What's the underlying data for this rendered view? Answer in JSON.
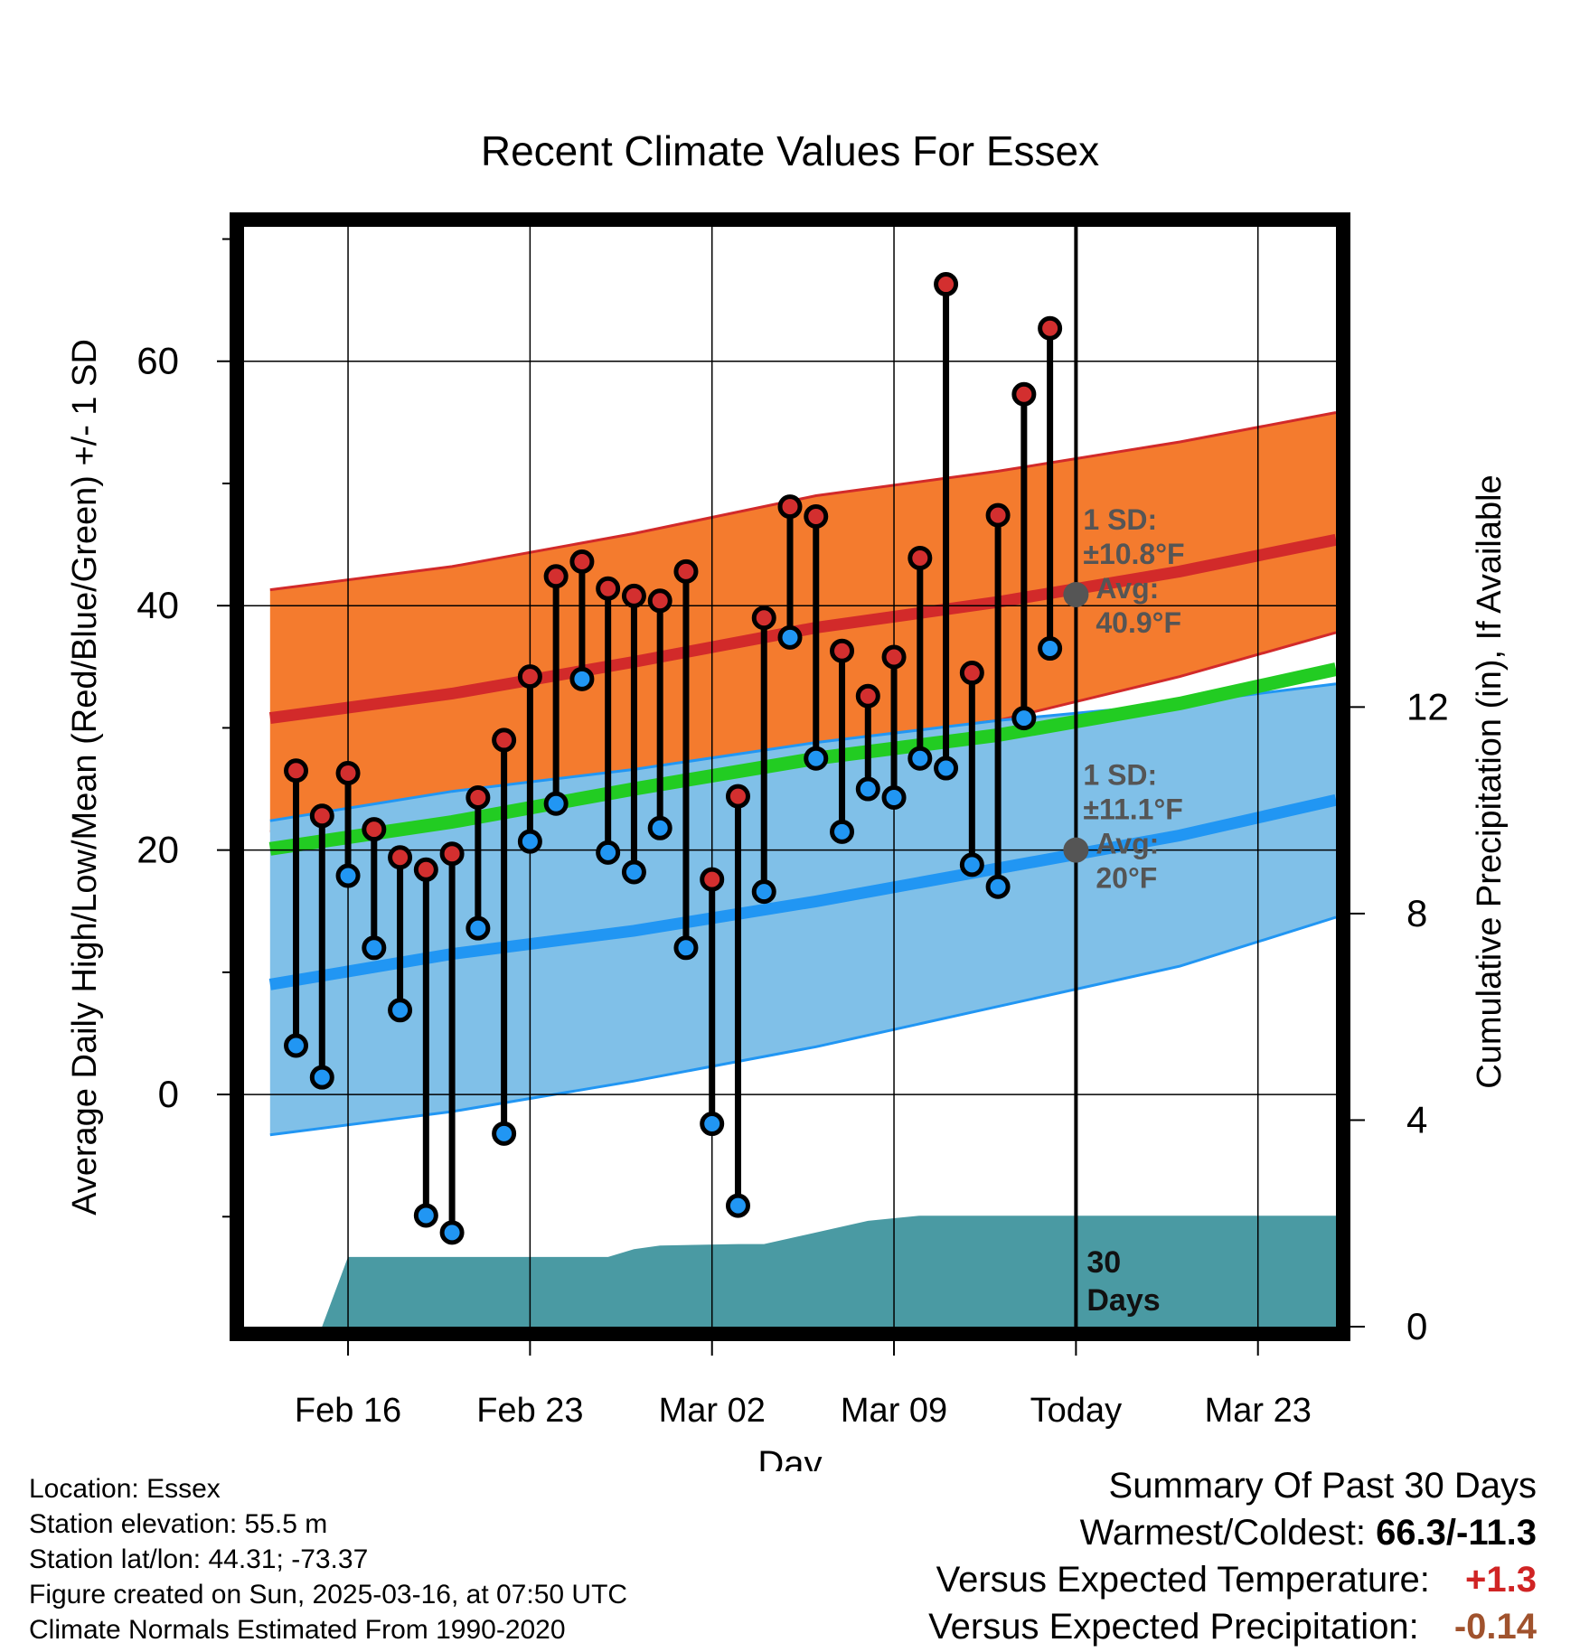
{
  "title": "Recent Climate Values For Essex",
  "chart_data": {
    "type": "line",
    "title": "Recent Climate Values For Essex",
    "xlabel": "Day",
    "ylabel": "Average Daily High/Low/Mean (Red/Blue/Green) +/- 1 SD",
    "y2label": "Cumulative Precipitation (in), If Available",
    "ylim": [
      -19,
      71
    ],
    "y2lim": [
      0,
      21.3
    ],
    "yticks": [
      0,
      20,
      40,
      60
    ],
    "y2ticks": [
      0,
      4,
      8,
      12
    ],
    "xlim": [
      "2025-02-12",
      "2025-03-26"
    ],
    "xticks": [
      {
        "date": "2025-02-16",
        "label": "Feb 16"
      },
      {
        "date": "2025-02-23",
        "label": "Feb 23"
      },
      {
        "date": "2025-03-02",
        "label": "Mar 02"
      },
      {
        "date": "2025-03-09",
        "label": "Mar 09"
      },
      {
        "date": "2025-03-16",
        "label": "Today"
      },
      {
        "date": "2025-03-23",
        "label": "Mar 23"
      }
    ],
    "grid": true,
    "normal_bands": [
      {
        "name": "High",
        "color": "#f47b2e",
        "edge": "#d22a2a",
        "x": [
          "2025-02-13",
          "2025-02-20",
          "2025-02-27",
          "2025-03-06",
          "2025-03-13",
          "2025-03-20",
          "2025-03-26"
        ],
        "mean": [
          30.8,
          32.8,
          35.4,
          38.2,
          40.3,
          42.8,
          45.4
        ],
        "upper": [
          41.3,
          43.2,
          45.9,
          49.0,
          51.0,
          53.4,
          55.8
        ],
        "lower": [
          21.5,
          23.2,
          25.9,
          28.7,
          30.6,
          34.2,
          37.8
        ]
      },
      {
        "name": "Low",
        "color": "#80c0e8",
        "edge": "#2196f3",
        "x": [
          "2025-02-13",
          "2025-02-20",
          "2025-02-27",
          "2025-03-06",
          "2025-03-13",
          "2025-03-20",
          "2025-03-26"
        ],
        "mean": [
          9.0,
          11.5,
          13.4,
          15.8,
          18.5,
          21.2,
          24.1
        ],
        "upper": [
          22.4,
          24.8,
          26.6,
          28.8,
          30.6,
          32.0,
          33.6
        ],
        "lower": [
          -3.3,
          -1.4,
          1.1,
          3.9,
          7.2,
          10.5,
          14.5
        ]
      },
      {
        "name": "Mean",
        "color": "#22cc22",
        "x": [
          "2025-02-13",
          "2025-02-20",
          "2025-02-27",
          "2025-03-06",
          "2025-03-13",
          "2025-03-20",
          "2025-03-26"
        ],
        "mean": [
          20.1,
          22.3,
          25.0,
          27.5,
          29.4,
          32.0,
          34.8
        ]
      }
    ],
    "daily": [
      {
        "date": "2025-02-14",
        "high": 26.5,
        "low": 4.0
      },
      {
        "date": "2025-02-15",
        "high": 22.8,
        "low": 1.4
      },
      {
        "date": "2025-02-16",
        "high": 26.3,
        "low": 17.9
      },
      {
        "date": "2025-02-17",
        "high": 21.7,
        "low": 12.0
      },
      {
        "date": "2025-02-18",
        "high": 19.4,
        "low": 6.9
      },
      {
        "date": "2025-02-19",
        "high": 18.4,
        "low": -9.9
      },
      {
        "date": "2025-02-20",
        "high": 19.7,
        "low": -11.3
      },
      {
        "date": "2025-02-21",
        "high": 24.3,
        "low": 13.6
      },
      {
        "date": "2025-02-22",
        "high": 29.0,
        "low": -3.2
      },
      {
        "date": "2025-02-23",
        "high": 34.2,
        "low": 20.7
      },
      {
        "date": "2025-02-24",
        "high": 42.4,
        "low": 23.8
      },
      {
        "date": "2025-02-25",
        "high": 43.6,
        "low": 34.0
      },
      {
        "date": "2025-02-26",
        "high": 41.4,
        "low": 19.8
      },
      {
        "date": "2025-02-27",
        "high": 40.8,
        "low": 18.2
      },
      {
        "date": "2025-02-28",
        "high": 40.4,
        "low": 21.8
      },
      {
        "date": "2025-03-01",
        "high": 42.8,
        "low": 12.0
      },
      {
        "date": "2025-03-02",
        "high": 17.6,
        "low": -2.4
      },
      {
        "date": "2025-03-03",
        "high": 24.4,
        "low": -9.1
      },
      {
        "date": "2025-03-04",
        "high": 39.0,
        "low": 16.6
      },
      {
        "date": "2025-03-05",
        "high": 48.1,
        "low": 37.4
      },
      {
        "date": "2025-03-06",
        "high": 47.3,
        "low": 27.5
      },
      {
        "date": "2025-03-07",
        "high": 36.3,
        "low": 21.5
      },
      {
        "date": "2025-03-08",
        "high": 32.6,
        "low": 25.0
      },
      {
        "date": "2025-03-09",
        "high": 35.8,
        "low": 24.3
      },
      {
        "date": "2025-03-10",
        "high": 43.9,
        "low": 27.5
      },
      {
        "date": "2025-03-11",
        "high": 66.3,
        "low": 26.7
      },
      {
        "date": "2025-03-12",
        "high": 34.5,
        "low": 18.8
      },
      {
        "date": "2025-03-13",
        "high": 47.4,
        "low": 17.0
      },
      {
        "date": "2025-03-14",
        "high": 57.3,
        "low": 30.8
      },
      {
        "date": "2025-03-15",
        "high": 62.7,
        "low": 36.5
      }
    ],
    "precipitation": {
      "x": [
        "2025-02-14",
        "2025-02-15",
        "2025-02-16",
        "2025-02-22",
        "2025-02-26",
        "2025-02-27",
        "2025-02-28",
        "2025-03-03",
        "2025-03-04",
        "2025-03-08",
        "2025-03-09",
        "2025-03-10",
        "2025-03-26"
      ],
      "values": [
        0.0,
        0.0,
        1.35,
        1.35,
        1.35,
        1.5,
        1.57,
        1.6,
        1.6,
        2.05,
        2.1,
        2.15,
        2.15
      ],
      "color": "#4a9aa3"
    },
    "today_markers": [
      {
        "label_lines": [
          "1 SD:",
          "±10.8°F",
          "Avg:",
          "40.9°F"
        ],
        "value": 40.9
      },
      {
        "label_lines": [
          "1 SD:",
          "±11.1°F",
          "Avg:",
          "20°F"
        ],
        "value": 20.0
      }
    ],
    "period_label_lines": [
      "30",
      "Days"
    ]
  },
  "footer": {
    "left": [
      "Location: Essex",
      "Station elevation: 55.5 m",
      "Station lat/lon: 44.31; -73.37",
      "Figure created on Sun, 2025-03-16, at 07:50 UTC",
      "Climate Normals Estimated From 1990-2020"
    ],
    "summary_title": "Summary Of Past 30 Days",
    "warmest_coldest_label": "Warmest/Coldest:",
    "warmest_coldest_value": "66.3/-11.3",
    "temp_label": "Versus Expected Temperature:",
    "temp_value": "+1.3",
    "precip_label": "Versus Expected Precipitation:",
    "precip_value": "-0.14"
  }
}
